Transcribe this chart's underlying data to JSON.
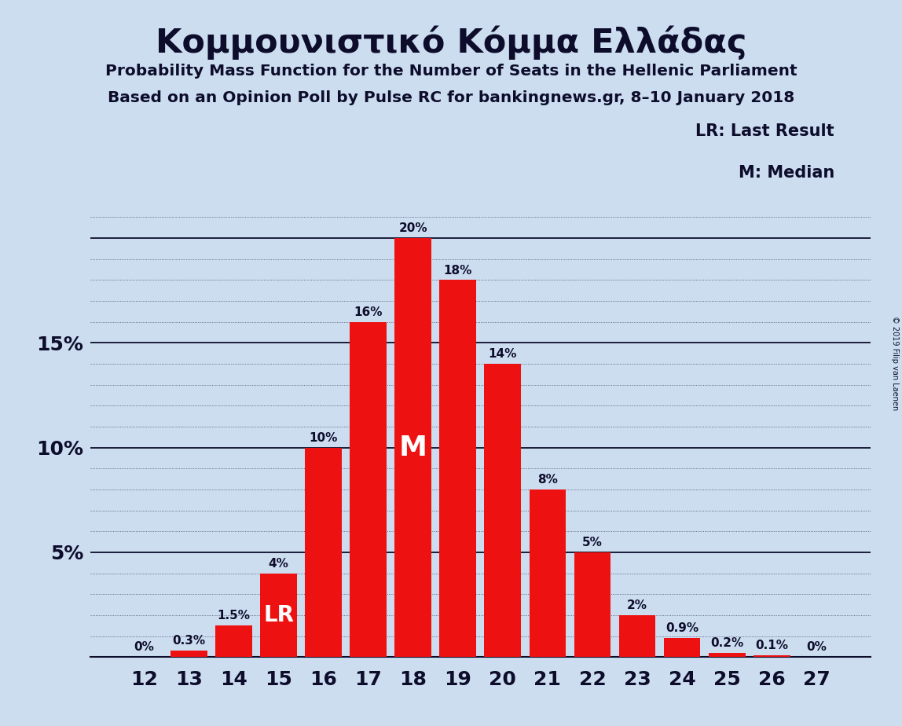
{
  "title": "Κομμουνιστικό Κόμμα Ελλάδας",
  "subtitle1": "Probability Mass Function for the Number of Seats in the Hellenic Parliament",
  "subtitle2": "Based on an Opinion Poll by Pulse RC for bankingnews.gr, 8–10 January 2018",
  "copyright": "© 2019 Filip van Laenen",
  "categories": [
    12,
    13,
    14,
    15,
    16,
    17,
    18,
    19,
    20,
    21,
    22,
    23,
    24,
    25,
    26,
    27
  ],
  "values": [
    0.0,
    0.3,
    1.5,
    4.0,
    10.0,
    16.0,
    20.0,
    18.0,
    14.0,
    8.0,
    5.0,
    2.0,
    0.9,
    0.2,
    0.1,
    0.0
  ],
  "labels": [
    "0%",
    "0.3%",
    "1.5%",
    "4%",
    "10%",
    "16%",
    "20%",
    "18%",
    "14%",
    "8%",
    "5%",
    "2%",
    "0.9%",
    "0.2%",
    "0.1%",
    "0%"
  ],
  "bar_color": "#ee1111",
  "background_color": "#ccddf0",
  "text_color": "#0d0d2b",
  "lr_bar": 15,
  "median_bar": 18,
  "ylim": [
    0,
    26
  ],
  "yticks": [
    5,
    10,
    15,
    20
  ],
  "ytick_labels": [
    "5%",
    "10%",
    "15%",
    ""
  ],
  "legend_lr": "LR: Last Result",
  "legend_m": "M: Median",
  "lr_label": "LR",
  "median_label": "M"
}
